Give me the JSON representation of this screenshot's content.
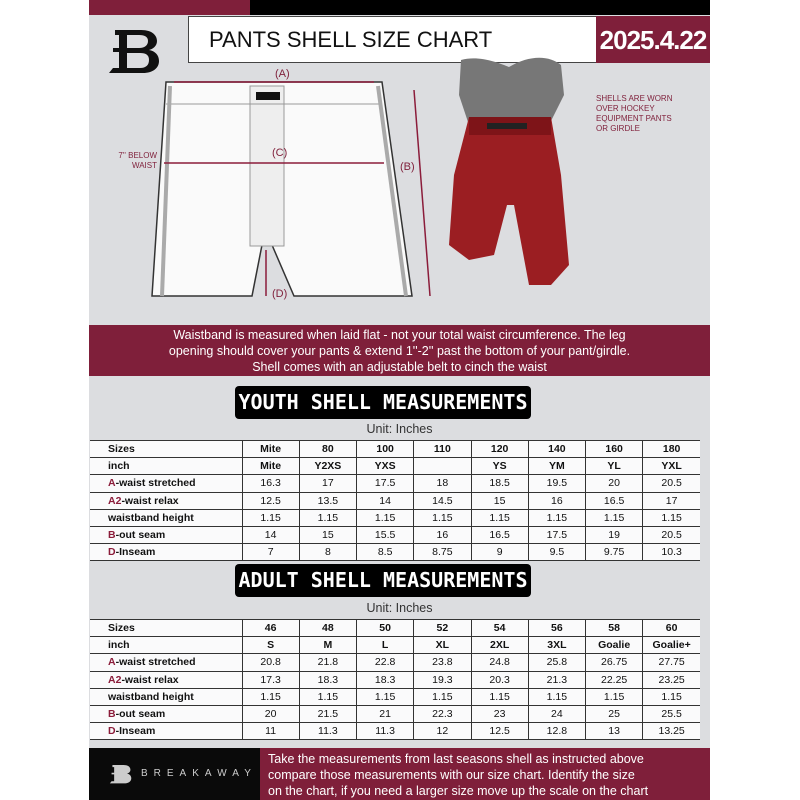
{
  "header": {
    "title": "PANTS SHELL SIZE CHART",
    "date": "2025.4.22"
  },
  "diagram": {
    "label_a": "(A)",
    "label_b": "(B)",
    "label_c": "(C)",
    "label_d": "(D)",
    "below_waist": "7'' BELOW\nWAIST",
    "worn_note": "SHELLS ARE WORN\nOVER HOCKEY\nEQUIPMENT PANTS\nOR GIRDLE"
  },
  "info_band": [
    "Waistband is measured when laid flat - not your total waist circumference. The leg",
    "opening should cover your pants & extend 1''-2'' past the bottom of your pant/girdle.",
    "Shell comes with an adjustable belt to cinch the waist"
  ],
  "youth": {
    "title": "YOUTH SHELL MEASUREMENTS",
    "unit": "Unit: Inches",
    "rows": [
      {
        "prefix": "",
        "label": "Sizes",
        "values": [
          "Mite",
          "80",
          "100",
          "110",
          "120",
          "140",
          "160",
          "180"
        ]
      },
      {
        "prefix": "",
        "label": "inch",
        "values": [
          "Mite",
          "Y2XS",
          "YXS",
          "",
          "YS",
          "YM",
          "YL",
          "YXL"
        ]
      },
      {
        "prefix": "A",
        "label": "-waist stretched",
        "values": [
          "16.3",
          "17",
          "17.5",
          "18",
          "18.5",
          "19.5",
          "20",
          "20.5"
        ]
      },
      {
        "prefix": "A2",
        "label": "-waist relax",
        "values": [
          "12.5",
          "13.5",
          "14",
          "14.5",
          "15",
          "16",
          "16.5",
          "17"
        ]
      },
      {
        "prefix": "",
        "label": "waistband height",
        "values": [
          "1.15",
          "1.15",
          "1.15",
          "1.15",
          "1.15",
          "1.15",
          "1.15",
          "1.15"
        ]
      },
      {
        "prefix": "B",
        "label": "-out seam",
        "values": [
          "14",
          "15",
          "15.5",
          "16",
          "16.5",
          "17.5",
          "19",
          "20.5"
        ]
      },
      {
        "prefix": "D",
        "label": "-Inseam",
        "values": [
          "7",
          "8",
          "8.5",
          "8.75",
          "9",
          "9.5",
          "9.75",
          "10.3"
        ]
      }
    ]
  },
  "adult": {
    "title": "ADULT SHELL MEASUREMENTS",
    "unit": "Unit: Inches",
    "rows": [
      {
        "prefix": "",
        "label": "Sizes",
        "values": [
          "46",
          "48",
          "50",
          "52",
          "54",
          "56",
          "58",
          "60"
        ]
      },
      {
        "prefix": "",
        "label": "inch",
        "values": [
          "S",
          "M",
          "L",
          "XL",
          "2XL",
          "3XL",
          "Goalie",
          "Goalie+"
        ]
      },
      {
        "prefix": "A",
        "label": "-waist stretched",
        "values": [
          "20.8",
          "21.8",
          "22.8",
          "23.8",
          "24.8",
          "25.8",
          "26.75",
          "27.75"
        ]
      },
      {
        "prefix": "A2",
        "label": "-waist relax",
        "values": [
          "17.3",
          "18.3",
          "18.3",
          "19.3",
          "20.3",
          "21.3",
          "22.25",
          "23.25"
        ]
      },
      {
        "prefix": "",
        "label": "waistband height",
        "values": [
          "1.15",
          "1.15",
          "1.15",
          "1.15",
          "1.15",
          "1.15",
          "1.15",
          "1.15"
        ]
      },
      {
        "prefix": "B",
        "label": "-out seam",
        "values": [
          "20",
          "21.5",
          "21",
          "22.3",
          "23",
          "24",
          "25",
          "25.5"
        ]
      },
      {
        "prefix": "D",
        "label": "-Inseam",
        "values": [
          "11",
          "11.3",
          "11.3",
          "12",
          "12.5",
          "12.8",
          "13",
          "13.25"
        ]
      }
    ]
  },
  "footer": {
    "brand": "BREAKAWAY",
    "text": [
      "Take the measurements from last seasons shell as instructed above",
      "compare those measurements  with our size chart. Identify the size",
      "on the chart, if you need a larger size move up the scale on the chart"
    ]
  },
  "colors": {
    "maroon": "#7f1f3a",
    "black": "#000000",
    "background": "#dcdde0"
  }
}
